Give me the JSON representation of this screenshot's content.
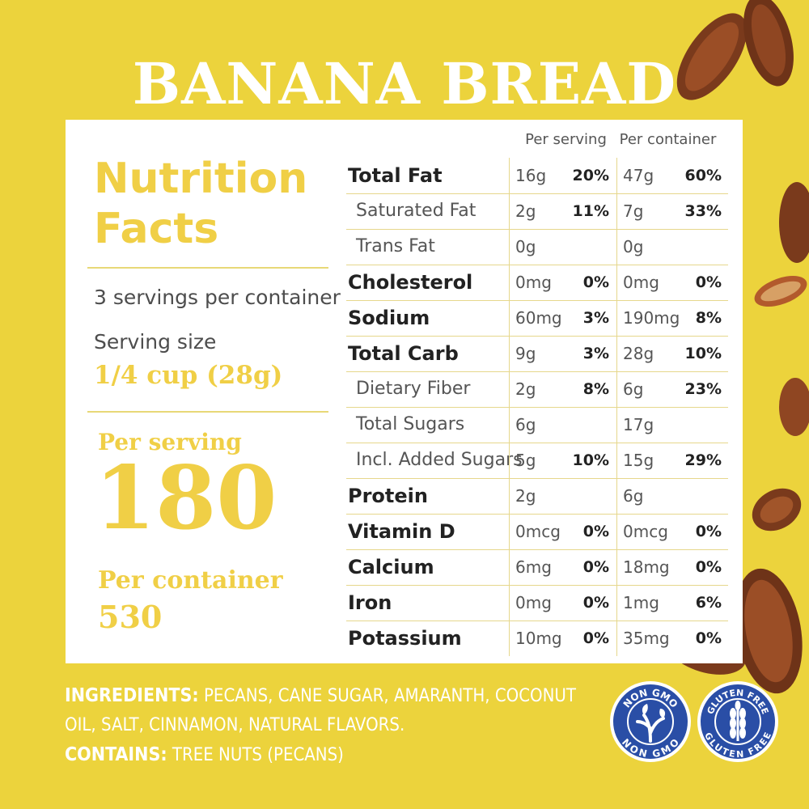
{
  "title": "BANANA BREAD",
  "nutrition_title": [
    "Nutrition",
    "Facts"
  ],
  "servings_per_container": "3 servings per container",
  "serving_size_label": "Serving size",
  "serving_size_value": "1/4 cup (28g)",
  "calories": {
    "per_serving_label": "Per serving",
    "per_serving_value": "180",
    "per_container_label": "Per container",
    "per_container_value": "530"
  },
  "columns": {
    "per_serving": "Per serving",
    "per_container": "Per container"
  },
  "nutrients": [
    {
      "name": "Total Fat",
      "bold": true,
      "sub": false,
      "serv_amt": "16g",
      "serv_pct": "20%",
      "cont_amt": "47g",
      "cont_pct": "60%"
    },
    {
      "name": "Saturated Fat",
      "bold": false,
      "sub": true,
      "serv_amt": "2g",
      "serv_pct": "11%",
      "cont_amt": "7g",
      "cont_pct": "33%"
    },
    {
      "name": "Trans Fat",
      "bold": false,
      "sub": true,
      "serv_amt": "0g",
      "serv_pct": "",
      "cont_amt": "0g",
      "cont_pct": ""
    },
    {
      "name": "Cholesterol",
      "bold": true,
      "sub": false,
      "serv_amt": "0mg",
      "serv_pct": "0%",
      "cont_amt": "0mg",
      "cont_pct": "0%"
    },
    {
      "name": "Sodium",
      "bold": true,
      "sub": false,
      "serv_amt": "60mg",
      "serv_pct": "3%",
      "cont_amt": "190mg",
      "cont_pct": "8%"
    },
    {
      "name": "Total Carb",
      "bold": true,
      "sub": false,
      "serv_amt": "9g",
      "serv_pct": "3%",
      "cont_amt": "28g",
      "cont_pct": "10%"
    },
    {
      "name": "Dietary Fiber",
      "bold": false,
      "sub": true,
      "serv_amt": "2g",
      "serv_pct": "8%",
      "cont_amt": "6g",
      "cont_pct": "23%"
    },
    {
      "name": "Total Sugars",
      "bold": false,
      "sub": true,
      "serv_amt": "6g",
      "serv_pct": "",
      "cont_amt": "17g",
      "cont_pct": ""
    },
    {
      "name": "Incl. Added Sugars",
      "bold": false,
      "sub": true,
      "serv_amt": "5g",
      "serv_pct": "10%",
      "cont_amt": "15g",
      "cont_pct": "29%"
    },
    {
      "name": "Protein",
      "bold": true,
      "sub": false,
      "serv_amt": "2g",
      "serv_pct": "",
      "cont_amt": "6g",
      "cont_pct": ""
    },
    {
      "name": "Vitamin D",
      "bold": true,
      "sub": false,
      "serv_amt": "0mcg",
      "serv_pct": "0%",
      "cont_amt": "0mcg",
      "cont_pct": "0%"
    },
    {
      "name": "Calcium",
      "bold": true,
      "sub": false,
      "serv_amt": "6mg",
      "serv_pct": "0%",
      "cont_amt": "18mg",
      "cont_pct": "0%"
    },
    {
      "name": "Iron",
      "bold": true,
      "sub": false,
      "serv_amt": "0mg",
      "serv_pct": "0%",
      "cont_amt": "1mg",
      "cont_pct": "6%"
    },
    {
      "name": "Potassium",
      "bold": true,
      "sub": false,
      "serv_amt": "10mg",
      "serv_pct": "0%",
      "cont_amt": "35mg",
      "cont_pct": "0%"
    }
  ],
  "ingredients": {
    "label": "INGREDIENTS:",
    "text": "PECANS, CANE SUGAR, AMARANTH, COCONUT OIL, SALT, CINNAMON, NATURAL FLAVORS.",
    "contains_label": "CONTAINS:",
    "contains_text": "TREE NUTS (PECANS)"
  },
  "badges": {
    "non_gmo": "NON GMO",
    "gluten_free": "GLUTEN FREE"
  },
  "colors": {
    "background": "#ecd33c",
    "accent_yellow": "#f0cf46",
    "badge_blue": "#2a4ea6"
  }
}
